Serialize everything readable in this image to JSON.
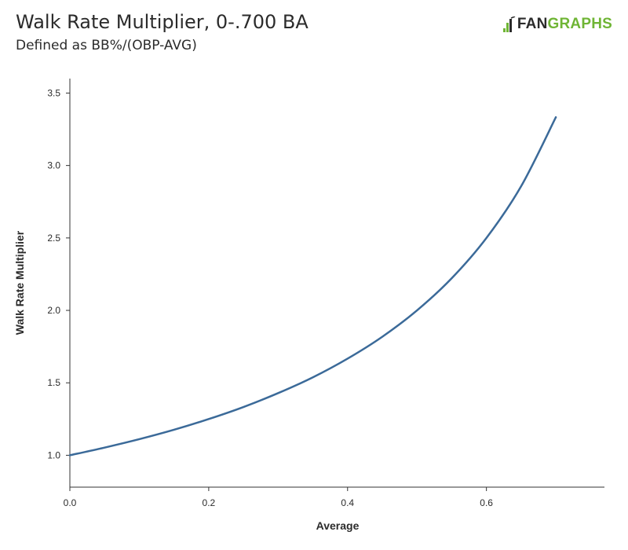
{
  "title": "Walk Rate Multiplier, 0-.700 BA",
  "subtitle": "Defined as BB%/(OBP-AVG)",
  "logo": {
    "text_fan": "FAN",
    "text_graphs": "GRAPHS"
  },
  "colors": {
    "line": "#3b6a99",
    "axis": "#333333",
    "text": "#2b2b2b",
    "brand_green": "#6fb535"
  },
  "chart_data": {
    "type": "line",
    "xlabel": "Average",
    "ylabel": "Walk Rate Multiplier",
    "xlim": [
      0,
      0.77
    ],
    "ylim": [
      0.78,
      3.6
    ],
    "x_ticks": [
      0.0,
      0.2,
      0.4,
      0.6
    ],
    "x_tick_labels": [
      "0.0",
      "0.2",
      "0.4",
      "0.6"
    ],
    "y_ticks": [
      1.0,
      1.5,
      2.0,
      2.5,
      3.0,
      3.5
    ],
    "y_tick_labels": [
      "1.0",
      "1.5",
      "2.0",
      "2.5",
      "3.0",
      "3.5"
    ],
    "grid": false,
    "series": [
      {
        "x": [
          0.0,
          0.05,
          0.1,
          0.15,
          0.2,
          0.25,
          0.3,
          0.35,
          0.4,
          0.45,
          0.5,
          0.55,
          0.6,
          0.65,
          0.7
        ],
        "y": [
          1.0,
          1.053,
          1.111,
          1.176,
          1.25,
          1.333,
          1.429,
          1.538,
          1.667,
          1.818,
          2.0,
          2.222,
          2.5,
          2.857,
          3.333
        ]
      }
    ]
  }
}
